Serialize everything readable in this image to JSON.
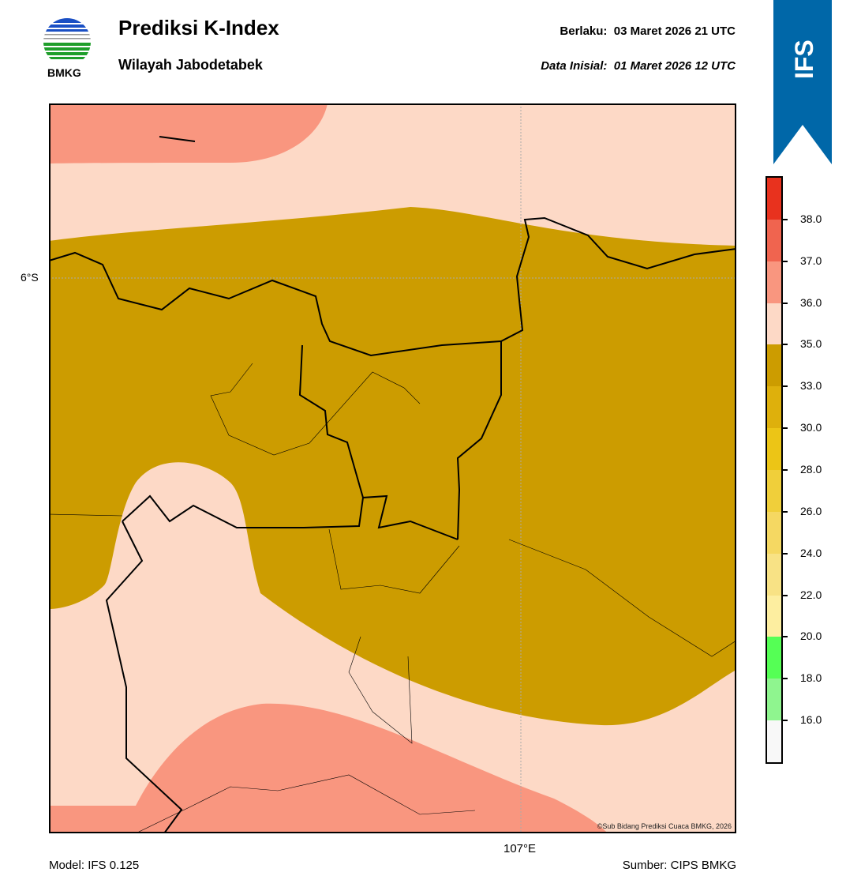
{
  "header": {
    "logo_text": "BMKG",
    "title": "Prediksi K-Index",
    "subtitle": "Wilayah Jabodetabek",
    "valid_label": "Berlaku:  03 Maret 2026 21 UTC",
    "init_label": "Data Inisial:  01 Maret 2026 12 UTC"
  },
  "badge": {
    "text": "IFS",
    "color": "#0067a8"
  },
  "map": {
    "lat_label": "6°S",
    "lon_label": "107°E",
    "copyright": "©Sub Bidang Prediksi Cuaca BMKG, 2026",
    "colors": {
      "background": "#fdd9c6",
      "band_33_35": "#cc9c00",
      "band_36_37": "#f9967f"
    }
  },
  "colorbar": {
    "colors": [
      "#e8321e",
      "#f0644f",
      "#f9967f",
      "#fdd9c6",
      "#cc9c00",
      "#deb00c",
      "#ecc516",
      "#f0cf3a",
      "#f5d862",
      "#f8e285",
      "#fdeea0",
      "#55ff55",
      "#8ff58f",
      "#f8f8f8"
    ],
    "ticks": [
      "38.0",
      "37.0",
      "36.0",
      "35.0",
      "33.0",
      "30.0",
      "28.0",
      "26.0",
      "24.0",
      "22.0",
      "20.0",
      "18.0",
      "16.0"
    ]
  },
  "footer": {
    "model": "Model: IFS 0.125",
    "source": "Sumber: CIPS BMKG"
  }
}
